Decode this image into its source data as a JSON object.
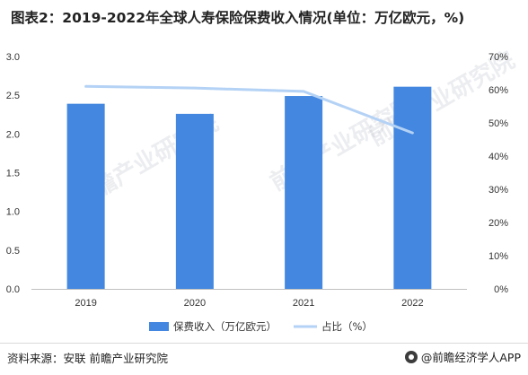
{
  "title": "图表2：2019-2022年全球人寿保险保费收入情况(单位：万亿欧元，%)",
  "source": "资料来源：安联 前瞻产业研究院",
  "brand": "@前瞻经济学人APP",
  "watermark": "前瞻产业研究院",
  "colors": {
    "bar": "#4387e0",
    "line": "#b4d2f5",
    "axis": "#333333"
  },
  "chart_data": {
    "type": "bar",
    "categories": [
      "2019",
      "2020",
      "2021",
      "2022"
    ],
    "series": [
      {
        "name": "保费收入（万亿欧元）",
        "type": "bar",
        "axis": "left",
        "values": [
          2.39,
          2.26,
          2.49,
          2.61
        ]
      },
      {
        "name": "占比（%）",
        "type": "line",
        "axis": "right",
        "values": [
          61.0,
          60.5,
          59.5,
          47.0
        ]
      }
    ],
    "y_left": {
      "min": 0,
      "max": 3.0,
      "ticks": [
        "0.0",
        "0.5",
        "1.0",
        "1.5",
        "2.0",
        "2.5",
        "3.0"
      ]
    },
    "y_right": {
      "min": 0,
      "max": 70,
      "ticks": [
        "0%",
        "10%",
        "20%",
        "30%",
        "40%",
        "50%",
        "60%",
        "70%"
      ]
    },
    "legend_position": "bottom",
    "grid": false
  }
}
